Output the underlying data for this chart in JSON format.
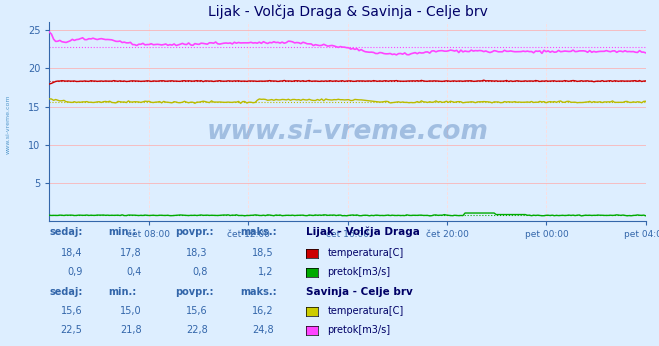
{
  "title": "Lijak - Volčja Draga & Savinja - Celje brv",
  "title_fontsize": 10,
  "bg_color": "#ddeeff",
  "plot_bg_color": "#ddeeff",
  "grid_color_major": "#ffaaaa",
  "grid_color_minor": "#ffdddd",
  "ylim": [
    0,
    26
  ],
  "yticks": [
    5,
    10,
    15,
    20,
    25
  ],
  "x_labels": [
    "čet 08:00",
    "čet 12:00",
    "čet 16:00",
    "čet 20:00",
    "pet 00:00",
    "pet 04:00"
  ],
  "n_points": 288,
  "watermark": "www.si-vreme.com",
  "series": {
    "lijak_temp": {
      "color": "#cc0000",
      "avg": 18.3,
      "dotted_color": "#ff4444"
    },
    "lijak_pretok": {
      "color": "#00aa00",
      "avg": 0.8,
      "dotted_color": "#44cc44"
    },
    "savinja_temp": {
      "color": "#bbbb00",
      "avg": 15.6,
      "dotted_color": "#dddd00"
    },
    "savinja_pretok": {
      "color": "#ff44ff",
      "avg": 22.8,
      "dotted_color": "#ff88ff"
    }
  },
  "table": {
    "headers": [
      "sedaj:",
      "min.:",
      "povpr.:",
      "maks.:"
    ],
    "station1_name": "Lijak - Volčja Draga",
    "station1_rows": [
      {
        "sedaj": "18,4",
        "min": "17,8",
        "povpr": "18,3",
        "maks": "18,5",
        "label": "temperatura[C]",
        "color": "#cc0000"
      },
      {
        "sedaj": "0,9",
        "min": "0,4",
        "povpr": "0,8",
        "maks": "1,2",
        "label": "pretok[m3/s]",
        "color": "#00aa00"
      }
    ],
    "station2_name": "Savinja - Celje brv",
    "station2_rows": [
      {
        "sedaj": "15,6",
        "min": "15,0",
        "povpr": "15,6",
        "maks": "16,2",
        "label": "temperatura[C]",
        "color": "#cccc00"
      },
      {
        "sedaj": "22,5",
        "min": "21,8",
        "povpr": "22,8",
        "maks": "24,8",
        "label": "pretok[m3/s]",
        "color": "#ff44ff"
      }
    ]
  },
  "sidebar_text": "www.si-vreme.com",
  "sidebar_color": "#5599cc",
  "text_color": "#3366aa",
  "title_color": "#000066"
}
